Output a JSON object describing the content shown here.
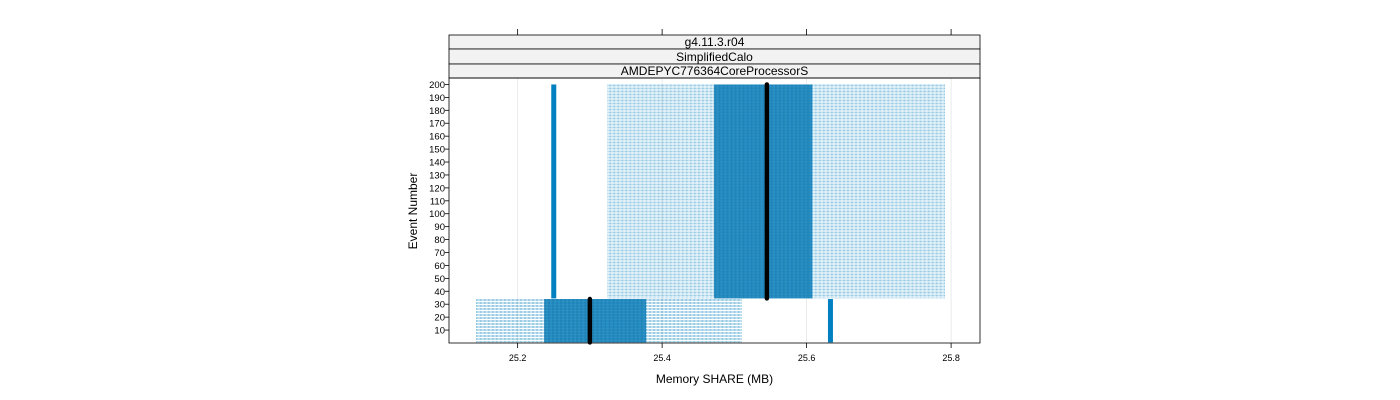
{
  "chart_data": {
    "type": "boxplot",
    "strips": [
      "g4.11.3.r04",
      "SimplifiedCalo",
      "AMDEPYC776364CoreProcessorS"
    ],
    "xlabel": "Memory SHARE (MB)",
    "ylabel": "Event Number",
    "xlim": [
      25.105,
      25.84
    ],
    "ylim": [
      0,
      205
    ],
    "xticks": [
      25.2,
      25.4,
      25.6,
      25.8
    ],
    "xtick_labels": [
      "25.2",
      "25.4",
      "25.6",
      "25.8"
    ],
    "yticks": [
      10,
      20,
      30,
      40,
      50,
      60,
      70,
      80,
      90,
      100,
      110,
      120,
      130,
      140,
      150,
      160,
      170,
      180,
      190,
      200
    ],
    "ytick_labels": [
      "10",
      "20",
      "30",
      "40",
      "50",
      "60",
      "70",
      "80",
      "90",
      "100",
      "110",
      "120",
      "130",
      "140",
      "150",
      "160",
      "170",
      "180",
      "190",
      "200"
    ],
    "grid": true,
    "box_color": "#0080c0",
    "median_color": "#000000",
    "groups": [
      {
        "event_range": [
          1,
          34
        ],
        "whisker_low": 25.143,
        "q1": 25.237,
        "median": 25.3,
        "q3": 25.378,
        "whisker_high": 25.51
      },
      {
        "event_range": [
          35,
          200
        ],
        "whisker_low": 25.325,
        "q1": 25.472,
        "median": 25.545,
        "q3": 25.608,
        "whisker_high": 25.792
      }
    ],
    "outliers": [
      {
        "event_range": [
          35,
          200
        ],
        "x": 25.25
      },
      {
        "event_range": [
          1,
          34
        ],
        "x": 25.633
      }
    ]
  }
}
